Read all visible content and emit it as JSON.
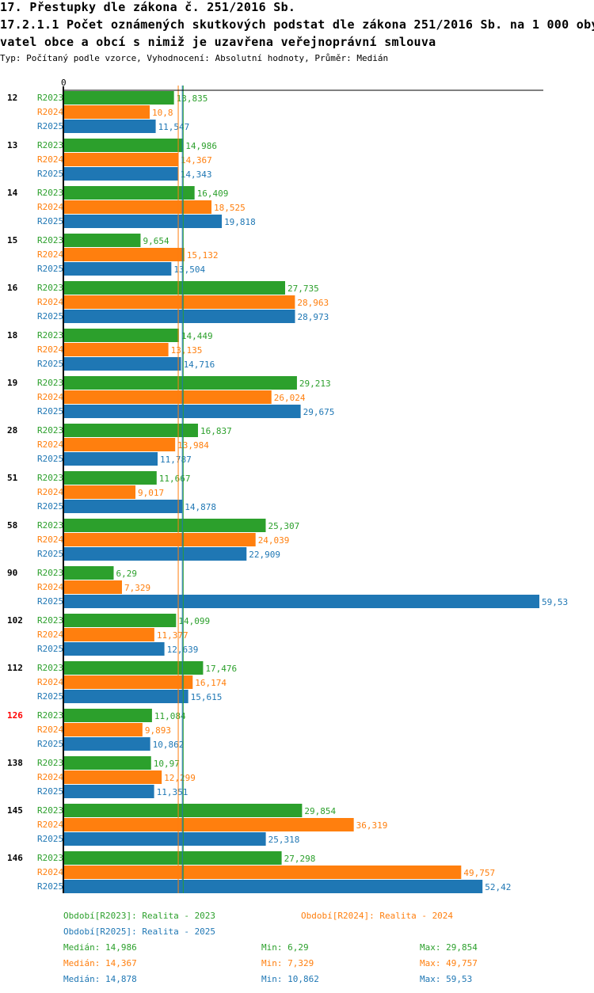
{
  "header": {
    "title1": "17. Přestupky dle zákona č. 251/2016 Sb.",
    "title2": "17.2.1.1 Počet oznámených skutkových podstat dle zákona 251/2016 Sb. na 1 000 oby",
    "title3": "vatel obce a obcí s nimiž je uzavřena veřejnoprávní smlouva",
    "subtitle": "Typ: Počítaný podle vzorce, Vyhodnocení: Absolutní hodnoty, Průměr: Medián"
  },
  "chart_data": {
    "type": "bar",
    "orientation": "horizontal",
    "xlim": [
      0,
      60
    ],
    "zero_label": "0",
    "categories": [
      "12",
      "13",
      "14",
      "15",
      "16",
      "18",
      "19",
      "28",
      "51",
      "58",
      "90",
      "102",
      "112",
      "126",
      "138",
      "145",
      "146"
    ],
    "highlight_category": "126",
    "highlight_color": "#ff0000",
    "series": [
      {
        "name": "R2023",
        "color": "#2ca02c",
        "values": [
          "13,835",
          "14,986",
          "16,409",
          "9,654",
          "27,735",
          "14,449",
          "29,213",
          "16,837",
          "11,667",
          "25,307",
          "6,29",
          "14,099",
          "17,476",
          "11,084",
          "10,97",
          "29,854",
          "27,298"
        ]
      },
      {
        "name": "R2024",
        "color": "#ff7f0e",
        "values": [
          "10,8",
          "14,367",
          "18,525",
          "15,132",
          "28,963",
          "13,135",
          "26,024",
          "13,984",
          "9,017",
          "24,039",
          "7,329",
          "11,377",
          "16,174",
          "9,893",
          "12,299",
          "36,319",
          "49,757"
        ]
      },
      {
        "name": "R2025",
        "color": "#1f77b4",
        "values": [
          "11,547",
          "14,343",
          "19,818",
          "13,504",
          "28,973",
          "14,716",
          "29,675",
          "11,787",
          "14,878",
          "22,909",
          "59,53",
          "12,639",
          "15,615",
          "10,862",
          "11,351",
          "25,318",
          "52,42"
        ]
      }
    ],
    "medians": [
      14.986,
      14.367,
      14.878
    ]
  },
  "legend": {
    "p2023": "Období[R2023]: Realita - 2023",
    "p2024": "Období[R2024]: Realita - 2024",
    "p2025": "Období[R2025]: Realita - 2025",
    "med2023": "Medián: 14,986",
    "min2023": "Min: 6,29",
    "max2023": "Max: 29,854",
    "med2024": "Medián: 14,367",
    "min2024": "Min: 7,329",
    "max2024": "Max: 49,757",
    "med2025": "Medián: 14,878",
    "min2025": "Min: 10,862",
    "max2025": "Max: 59,53"
  }
}
